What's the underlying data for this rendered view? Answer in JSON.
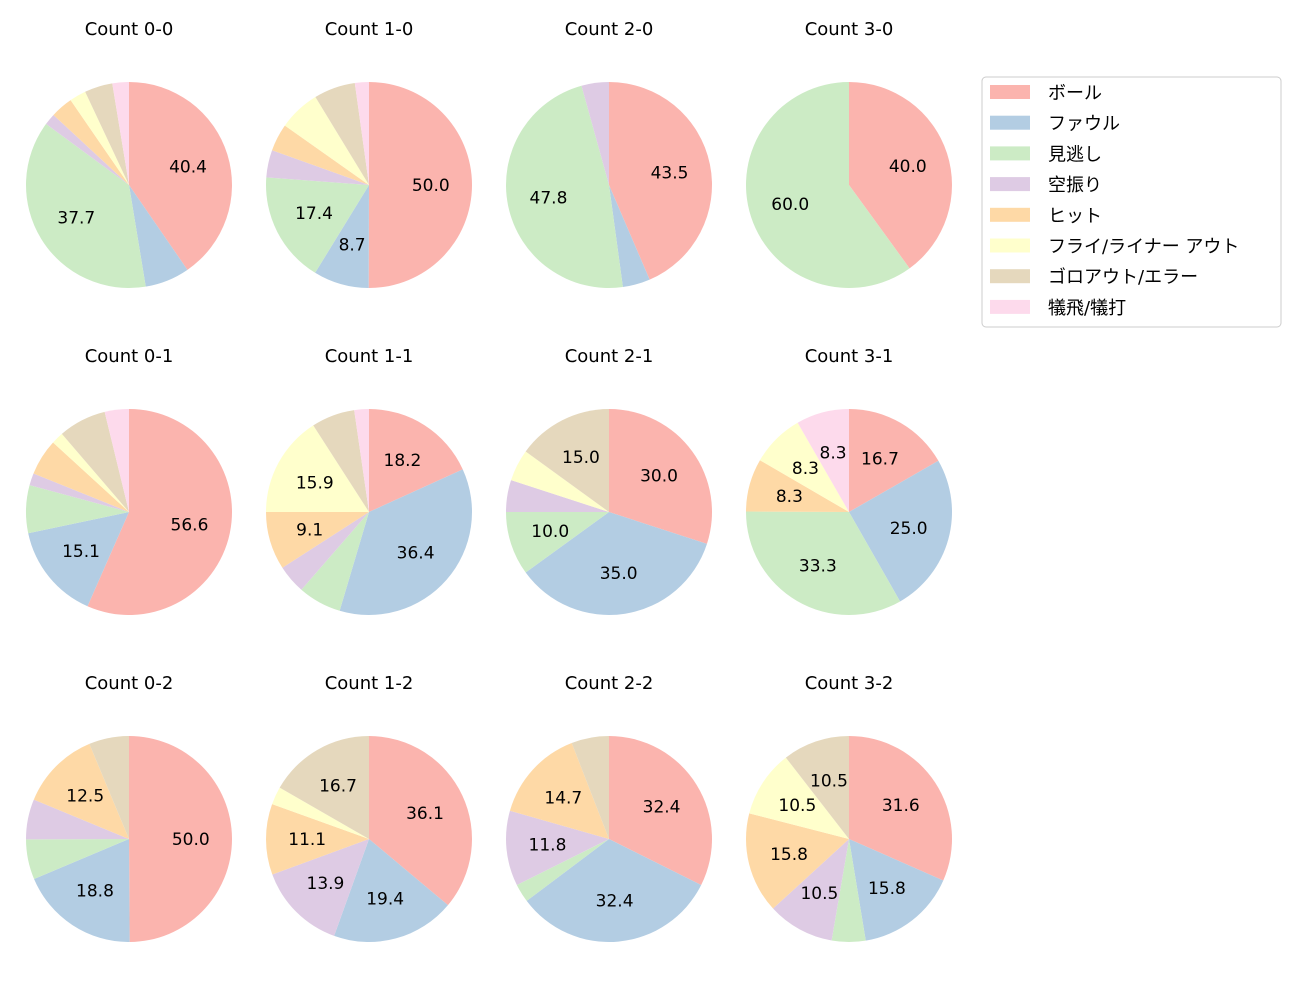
{
  "chart_data": {
    "type": "pie",
    "legend": {
      "placement": "right",
      "entries": [
        "ボール",
        "ファウル",
        "見逃し",
        "空振り",
        "ヒット",
        "フライ/ライナー アウト",
        "ゴロアウト/エラー",
        "犠飛/犠打"
      ]
    },
    "colors": [
      "#fbb4ae",
      "#b3cde3",
      "#ccebc5",
      "#decbe4",
      "#fed9a6",
      "#ffffcc",
      "#e5d8bd",
      "#fddaec"
    ],
    "start_angle": "top",
    "direction": "clockwise",
    "charts": [
      {
        "title": "Count 0-0",
        "values": [
          40.4,
          7.0,
          37.7,
          1.8,
          3.5,
          2.6,
          4.4,
          2.6
        ]
      },
      {
        "title": "Count 1-0",
        "values": [
          50.0,
          8.7,
          17.4,
          4.3,
          4.3,
          6.5,
          6.5,
          2.2
        ]
      },
      {
        "title": "Count 2-0",
        "values": [
          43.5,
          4.3,
          47.8,
          4.3,
          0,
          0,
          0,
          0
        ]
      },
      {
        "title": "Count 3-0",
        "values": [
          40.0,
          0,
          60.0,
          0,
          0,
          0,
          0,
          0
        ]
      },
      {
        "title": "Count 0-1",
        "values": [
          56.6,
          15.1,
          7.5,
          1.9,
          5.7,
          1.9,
          7.5,
          3.8
        ]
      },
      {
        "title": "Count 1-1",
        "values": [
          18.2,
          36.4,
          6.8,
          4.5,
          9.1,
          15.9,
          6.8,
          2.3
        ]
      },
      {
        "title": "Count 2-1",
        "values": [
          30.0,
          35.0,
          10.0,
          5.0,
          0,
          5.0,
          15.0,
          0
        ]
      },
      {
        "title": "Count 3-1",
        "values": [
          16.7,
          25.0,
          33.3,
          0,
          8.3,
          8.3,
          0,
          8.3
        ]
      },
      {
        "title": "Count 0-2",
        "values": [
          50.0,
          18.8,
          6.3,
          6.3,
          12.5,
          0,
          6.3,
          0
        ]
      },
      {
        "title": "Count 1-2",
        "values": [
          36.1,
          19.4,
          0,
          13.9,
          11.1,
          2.8,
          16.7,
          0
        ]
      },
      {
        "title": "Count 2-2",
        "values": [
          32.4,
          32.4,
          2.9,
          11.8,
          14.7,
          0,
          5.9,
          0
        ]
      },
      {
        "title": "Count 3-2",
        "values": [
          31.6,
          15.8,
          5.3,
          10.5,
          15.8,
          10.5,
          10.5,
          0
        ]
      }
    ]
  }
}
